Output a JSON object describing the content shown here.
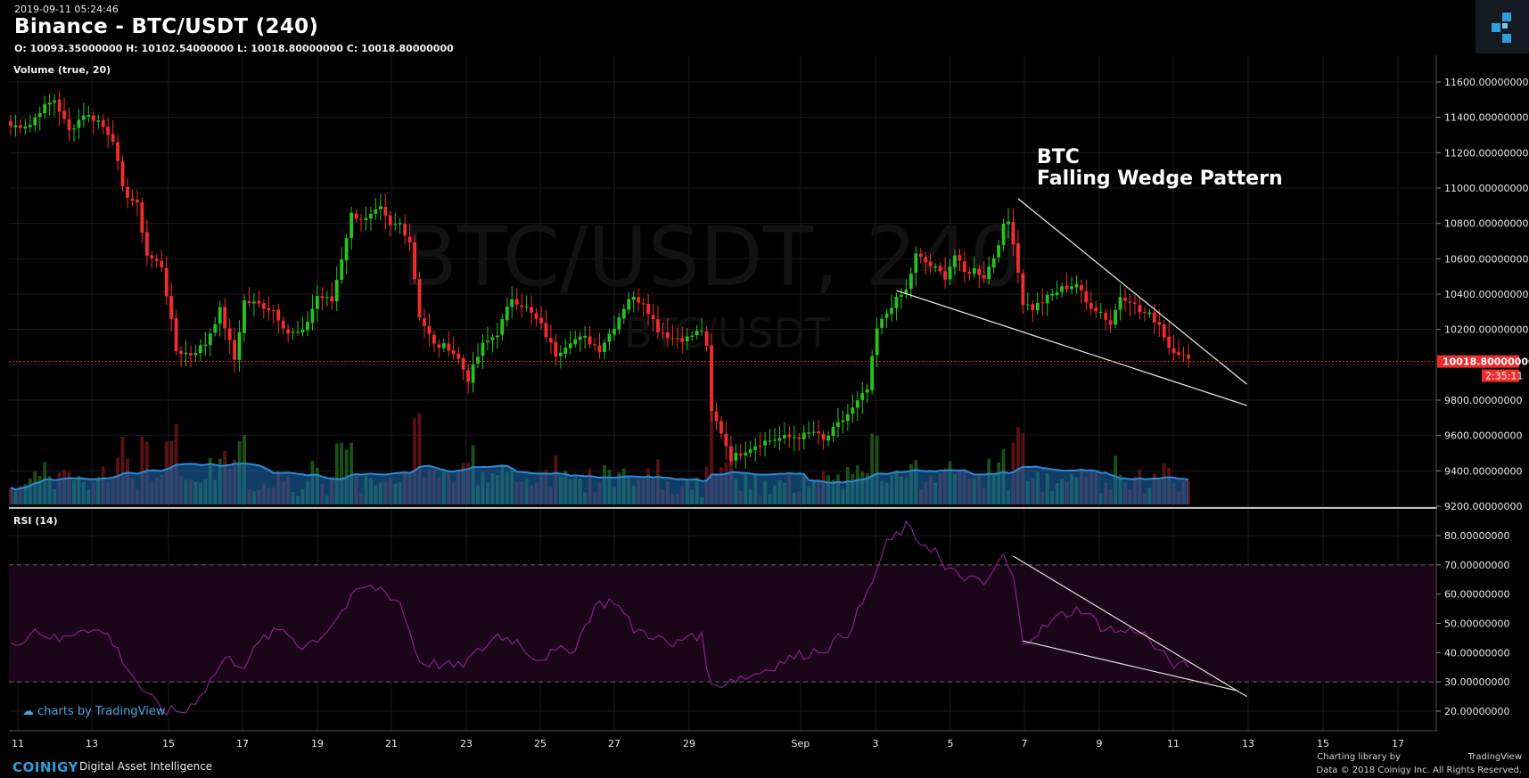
{
  "header": {
    "timestamp": "2019-09-11 05:24:46",
    "title": "Binance - BTC/USDT (240)",
    "ohlc": "O: 10093.35000000 H: 10102.54000000 L: 10018.80000000 C: 10018.80000000"
  },
  "colors": {
    "up": "#26c21e",
    "down": "#f22c2c",
    "rsi": "#8a1f8a",
    "wedge": "#e0e0e0",
    "price_line": "#f22c2c",
    "vol_ma": "#1e6fb8"
  },
  "chart_data": [
    {
      "type": "candlestick",
      "title": "BTC/USDT, 240",
      "watermark": "BTC/USDT, 240",
      "watermark_sub": "BTC/USDT",
      "annotation": [
        "BTC",
        "Falling Wedge Pattern"
      ],
      "x_tick_labels": [
        "11",
        "13",
        "15",
        "17",
        "19",
        "21",
        "23",
        "25",
        "27",
        "29",
        "Sep",
        "3",
        "5",
        "7",
        "9",
        "11",
        "13",
        "15",
        "17"
      ],
      "y_tick_labels": [
        "11600.00000000",
        "11400.00000000",
        "11200.00000000",
        "11000.00000000",
        "10800.00000000",
        "10600.00000000",
        "10400.00000000",
        "10200.00000000",
        "9800.00000000",
        "9600.00000000",
        "9400.00000000",
        "9200.00000000"
      ],
      "ylim": [
        9200,
        11800
      ],
      "last_price": "10018.80000000",
      "countdown": "2:35:11",
      "close_anchors": [
        [
          0,
          11350
        ],
        [
          4,
          11360
        ],
        [
          6,
          11440
        ],
        [
          9,
          11500
        ],
        [
          12,
          11320
        ],
        [
          15,
          11420
        ],
        [
          18,
          11380
        ],
        [
          21,
          11280
        ],
        [
          23,
          10990
        ],
        [
          26,
          10900
        ],
        [
          28,
          10620
        ],
        [
          31,
          10560
        ],
        [
          34,
          10080
        ],
        [
          37,
          10060
        ],
        [
          40,
          10120
        ],
        [
          43,
          10310
        ],
        [
          46,
          10030
        ],
        [
          48,
          10360
        ],
        [
          51,
          10340
        ],
        [
          54,
          10310
        ],
        [
          57,
          10180
        ],
        [
          60,
          10180
        ],
        [
          63,
          10390
        ],
        [
          66,
          10360
        ],
        [
          70,
          10850
        ],
        [
          73,
          10820
        ],
        [
          76,
          10880
        ],
        [
          78,
          10780
        ],
        [
          80,
          10800
        ],
        [
          82,
          10700
        ],
        [
          84,
          10280
        ],
        [
          87,
          10110
        ],
        [
          90,
          10100
        ],
        [
          92,
          10030
        ],
        [
          94,
          9920
        ],
        [
          97,
          10110
        ],
        [
          100,
          10180
        ],
        [
          103,
          10380
        ],
        [
          106,
          10320
        ],
        [
          109,
          10220
        ],
        [
          112,
          10060
        ],
        [
          115,
          10140
        ],
        [
          118,
          10150
        ],
        [
          121,
          10090
        ],
        [
          124,
          10220
        ],
        [
          127,
          10380
        ],
        [
          130,
          10360
        ],
        [
          133,
          10200
        ],
        [
          136,
          10150
        ],
        [
          139,
          10150
        ],
        [
          142,
          10200
        ],
        [
          143,
          10090
        ],
        [
          144,
          9730
        ],
        [
          146,
          9620
        ],
        [
          148,
          9470
        ],
        [
          151,
          9520
        ],
        [
          154,
          9560
        ],
        [
          157,
          9580
        ],
        [
          160,
          9590
        ],
        [
          163,
          9600
        ],
        [
          165,
          9620
        ],
        [
          167,
          9570
        ],
        [
          170,
          9660
        ],
        [
          173,
          9750
        ],
        [
          176,
          9860
        ],
        [
          178,
          10200
        ],
        [
          181,
          10340
        ],
        [
          184,
          10420
        ],
        [
          186,
          10620
        ],
        [
          188,
          10580
        ],
        [
          190,
          10540
        ],
        [
          192,
          10500
        ],
        [
          194,
          10620
        ],
        [
          196,
          10520
        ],
        [
          198,
          10540
        ],
        [
          200,
          10500
        ],
        [
          202,
          10610
        ],
        [
          204,
          10780
        ],
        [
          205,
          10810
        ],
        [
          206,
          10700
        ],
        [
          208,
          10350
        ],
        [
          210,
          10320
        ],
        [
          213,
          10380
        ],
        [
          216,
          10430
        ],
        [
          219,
          10460
        ],
        [
          221,
          10350
        ],
        [
          224,
          10300
        ],
        [
          226,
          10230
        ],
        [
          228,
          10390
        ],
        [
          230,
          10370
        ],
        [
          232,
          10300
        ],
        [
          234,
          10280
        ],
        [
          236,
          10230
        ],
        [
          238,
          10100
        ],
        [
          240,
          10070
        ],
        [
          242,
          10020
        ]
      ],
      "wedge_upper": [
        [
          207,
          10940
        ],
        [
          254,
          9890
        ]
      ],
      "wedge_lower": [
        [
          182,
          10420
        ],
        [
          254,
          9770
        ]
      ]
    },
    {
      "type": "bar",
      "title": "Volume (true, 20)",
      "series": [
        {
          "values": "derived"
        },
        {
          "name": "",
          "values": "moving-average"
        }
      ]
    },
    {
      "type": "line",
      "title": "RSI (14)",
      "y_tick_labels": [
        "80.00000000",
        "70.00000000",
        "60.00000000",
        "50.00000000",
        "40.00000000",
        "30.00000000",
        "20.00000000"
      ],
      "ylim": [
        13,
        86
      ],
      "bands": [
        30,
        70
      ],
      "anchors": [
        [
          0,
          42
        ],
        [
          5,
          48
        ],
        [
          10,
          44
        ],
        [
          15,
          49
        ],
        [
          20,
          46
        ],
        [
          24,
          35
        ],
        [
          28,
          25
        ],
        [
          32,
          20
        ],
        [
          36,
          20
        ],
        [
          40,
          28
        ],
        [
          44,
          38
        ],
        [
          48,
          36
        ],
        [
          52,
          45
        ],
        [
          56,
          48
        ],
        [
          60,
          42
        ],
        [
          64,
          46
        ],
        [
          68,
          54
        ],
        [
          72,
          62
        ],
        [
          76,
          62
        ],
        [
          80,
          57
        ],
        [
          84,
          37
        ],
        [
          88,
          36
        ],
        [
          92,
          35
        ],
        [
          96,
          40
        ],
        [
          100,
          46
        ],
        [
          104,
          44
        ],
        [
          108,
          38
        ],
        [
          112,
          40
        ],
        [
          116,
          42
        ],
        [
          120,
          56
        ],
        [
          124,
          58
        ],
        [
          128,
          48
        ],
        [
          132,
          46
        ],
        [
          136,
          42
        ],
        [
          140,
          47
        ],
        [
          142,
          45
        ],
        [
          144,
          28
        ],
        [
          148,
          31
        ],
        [
          152,
          32
        ],
        [
          156,
          35
        ],
        [
          160,
          38
        ],
        [
          164,
          40
        ],
        [
          168,
          42
        ],
        [
          172,
          47
        ],
        [
          176,
          60
        ],
        [
          180,
          77
        ],
        [
          184,
          83
        ],
        [
          186,
          79
        ],
        [
          190,
          75
        ],
        [
          192,
          68
        ],
        [
          196,
          66
        ],
        [
          200,
          63
        ],
        [
          204,
          73
        ],
        [
          206,
          65
        ],
        [
          208,
          44
        ],
        [
          212,
          48
        ],
        [
          216,
          53
        ],
        [
          220,
          55
        ],
        [
          224,
          49
        ],
        [
          228,
          47
        ],
        [
          232,
          48
        ],
        [
          236,
          40
        ],
        [
          240,
          35
        ],
        [
          242,
          36
        ]
      ],
      "wedge_upper": [
        [
          206,
          73
        ],
        [
          254,
          25
        ]
      ],
      "wedge_lower": [
        [
          208,
          44
        ],
        [
          252,
          27
        ]
      ]
    }
  ],
  "footer": {
    "brand": "COINIGY",
    "tagline": "Digital Asset Intelligence",
    "credit1": "Charting library by",
    "credit1b": "TradingView",
    "credit2": "Data © 2018  Coinigy Inc. All Rights Reserved.",
    "tv_badge": "charts by TradingView"
  }
}
